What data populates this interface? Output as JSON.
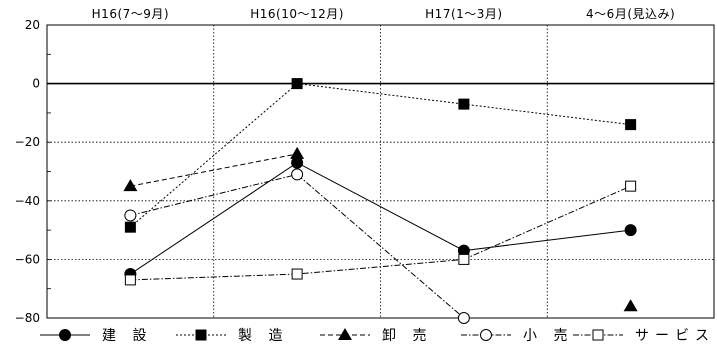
{
  "chart_data": {
    "type": "line",
    "categories": [
      "H16(7～9月)",
      "H16(10～12月)",
      "H17(1～3月)",
      "4～6月(見込み)"
    ],
    "ylim": [
      -80,
      20
    ],
    "yticks": [
      20,
      0,
      -20,
      -40,
      -60,
      -80
    ],
    "grid": true,
    "legend_position": "bottom",
    "series": [
      {
        "name": "建 設",
        "values": [
          -65,
          -27,
          -57,
          -50
        ],
        "marker": "circle-filled",
        "dash": "solid"
      },
      {
        "name": "製 造",
        "values": [
          -49,
          0,
          -7,
          -14
        ],
        "marker": "square-filled",
        "dash": "dotted"
      },
      {
        "name": "卸 売",
        "values": [
          -35,
          -24,
          null,
          -76
        ],
        "marker": "triangle-filled",
        "dash": "dashed"
      },
      {
        "name": "小 売",
        "values": [
          -45,
          -31,
          -80,
          null
        ],
        "marker": "circle-open",
        "dash": "dashdot"
      },
      {
        "name": "サービス",
        "values": [
          -67,
          -65,
          -60,
          -35
        ],
        "marker": "square-open",
        "dash": "dashdot"
      }
    ]
  }
}
